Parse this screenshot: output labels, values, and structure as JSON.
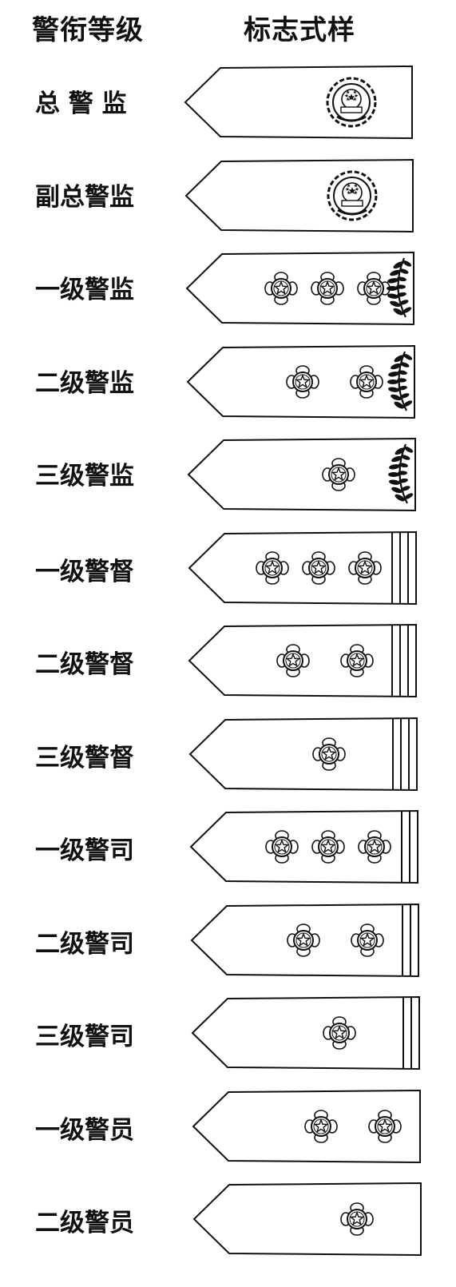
{
  "header": {
    "rank_label": "警衔等级",
    "insignia_label": "标志式样"
  },
  "ranks": [
    {
      "name": "总 警 监",
      "emblem": "national-emblem",
      "stars": 0,
      "wreath": false,
      "bars": 0
    },
    {
      "name": "副总警监",
      "emblem": "national-emblem",
      "stars": 0,
      "wreath": false,
      "bars": 0
    },
    {
      "name": "一级警监",
      "emblem": "none",
      "stars": 3,
      "wreath": true,
      "bars": 0
    },
    {
      "name": "二级警监",
      "emblem": "none",
      "stars": 2,
      "wreath": true,
      "bars": 0
    },
    {
      "name": "三级警监",
      "emblem": "none",
      "stars": 1,
      "wreath": true,
      "bars": 0
    },
    {
      "name": "一级警督",
      "emblem": "none",
      "stars": 3,
      "wreath": false,
      "bars": 3
    },
    {
      "name": "二级警督",
      "emblem": "none",
      "stars": 2,
      "wreath": false,
      "bars": 3
    },
    {
      "name": "三级警督",
      "emblem": "none",
      "stars": 1,
      "wreath": false,
      "bars": 3
    },
    {
      "name": "一级警司",
      "emblem": "none",
      "stars": 3,
      "wreath": false,
      "bars": 2
    },
    {
      "name": "二级警司",
      "emblem": "none",
      "stars": 2,
      "wreath": false,
      "bars": 2
    },
    {
      "name": "三级警司",
      "emblem": "none",
      "stars": 1,
      "wreath": false,
      "bars": 2
    },
    {
      "name": "一级警员",
      "emblem": "none",
      "stars": 2,
      "wreath": false,
      "bars": 0
    },
    {
      "name": "二级警员",
      "emblem": "none",
      "stars": 1,
      "wreath": false,
      "bars": 0
    }
  ],
  "colors": {
    "ink": "#111111",
    "paper": "#ffffff"
  }
}
